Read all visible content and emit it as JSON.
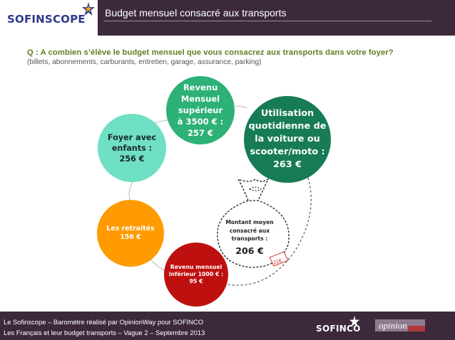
{
  "header": {
    "logo_text": "SOFINSCOPE",
    "title": "Budget mensuel consacré aux transports"
  },
  "question": {
    "text": "Q : A combien s’élève le budget mensuel que vous consacrez aux transports dans votre foyer?",
    "subtext": "(billets, abonnements, carburants, entretien, garage, assurance, parking)"
  },
  "bubbles": {
    "revenu_superieur": "Revenu\nMensuel\nsupérieur\nà 3500 € :\n257 €",
    "voiture_moto": "Utilisation\nquotidienne de\nla voiture ou\nscooter/moto :\n263 €",
    "foyer_enfants": "Foyer avec\nenfants :\n256 €",
    "retraites": "Les retraités\n156 €",
    "revenu_inferieur": "Revenu mensuel\ninférieur 1000 € :\n95 €"
  },
  "bag": {
    "label": "Montant moyen\nconsacré aux\ntransports :",
    "value": "206 €",
    "tag": "21€"
  },
  "footer": {
    "line1": "Le Sofinscope – Baromètre réalisé par OpinionWay pour SOFINCO",
    "line2": "Les Français et leur budget transports – Vague 2 – Septembre 2013",
    "sofinco": "SOFINCO",
    "opinionway": "opinion"
  },
  "colors": {
    "header_bg": "#3c2a3b",
    "question_green": "#5d7e1f",
    "revenu_superieur": "#2db176",
    "voiture_moto": "#177c56",
    "foyer_enfants": "#6fe0c4",
    "retraites": "#ff9a00",
    "revenu_inferieur": "#bf1010"
  },
  "icons": [
    "star-icon",
    "money-bag-icon",
    "price-tag-icon"
  ]
}
